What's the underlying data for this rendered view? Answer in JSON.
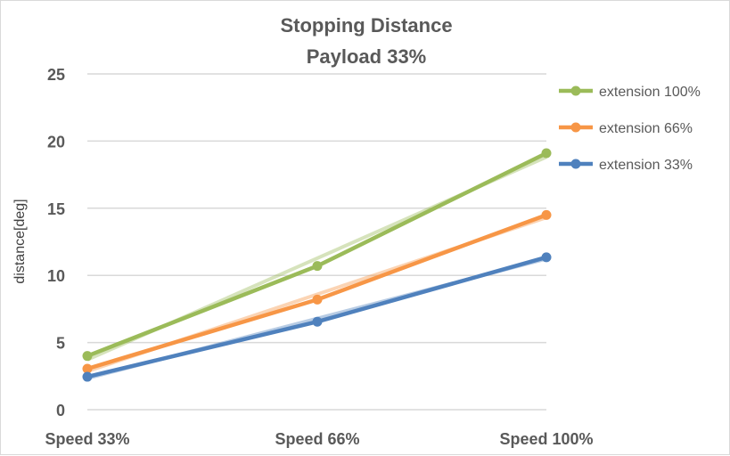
{
  "chart_data": {
    "type": "line",
    "title": [
      "Stopping Distance",
      "Payload 33%"
    ],
    "xlabel": "",
    "ylabel": "distance[deg]",
    "categories": [
      "Speed 33%",
      "Speed 66%",
      "Speed 100%"
    ],
    "ylim": [
      0,
      25
    ],
    "yticks": [
      0,
      5,
      10,
      15,
      20,
      25
    ],
    "grid": true,
    "legend_position": "right",
    "trendlines": true,
    "series": [
      {
        "name": "extension 100%",
        "color": "#9BBB59",
        "values": [
          4.0,
          10.7,
          19.1
        ]
      },
      {
        "name": "extension 66%",
        "color": "#F79646",
        "values": [
          3.05,
          8.2,
          14.5
        ]
      },
      {
        "name": "extension 33%",
        "color": "#4F81BD",
        "values": [
          2.45,
          6.55,
          11.35
        ]
      }
    ]
  }
}
